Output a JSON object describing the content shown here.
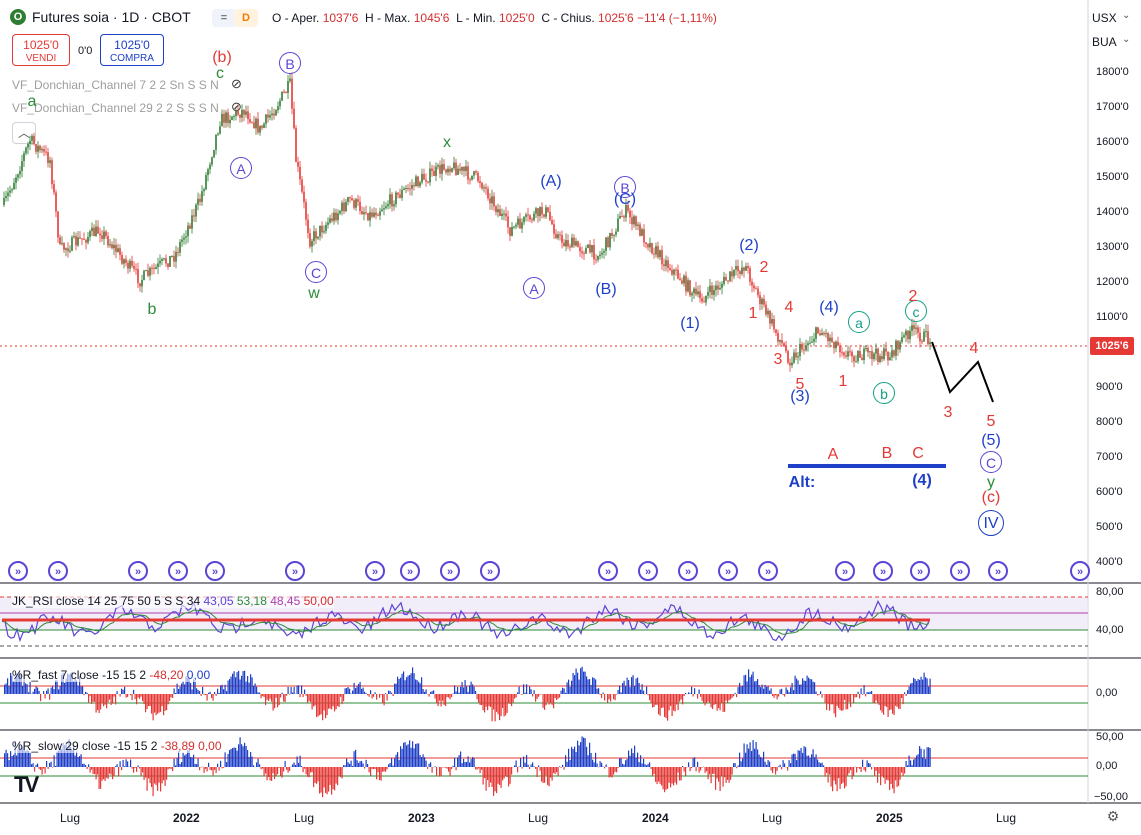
{
  "header": {
    "symbol_icon": "O",
    "title": "Futures soia · 1D · CBOT",
    "pill_1": "=",
    "pill_2": "D",
    "ohlc": {
      "o_label": "O - Aper.",
      "o": "1037'6",
      "h_label": "H - Max.",
      "h": "1045'6",
      "l_label": "L - Min.",
      "l": "1025'0",
      "c_label": "C - Chius.",
      "c": "1025'6",
      "change": "−11'4 (−1,11%)"
    }
  },
  "trade": {
    "sell_price": "1025'0",
    "sell_label": "VENDI",
    "spread": "0'0",
    "buy_price": "1025'0",
    "buy_label": "COMPRA"
  },
  "indicators": {
    "donchian_1": "VF_Donchian_Channel 7 2 2 Sn S S N",
    "donchian_2": "VF_Donchian_Channel 29 2 2 S S S N",
    "collapse_icon": "chevron-up-icon"
  },
  "right_scale": {
    "currency": "USX",
    "unit": "BUA",
    "price_labels": [
      "1800'0",
      "1700'0",
      "1600'0",
      "1500'0",
      "1400'0",
      "1300'0",
      "1200'0",
      "1100'0",
      "1000'0",
      "900'0",
      "800'0",
      "700'0",
      "600'0",
      "500'0",
      "400'0"
    ],
    "last_price": "1025'6"
  },
  "panes": {
    "rsi": {
      "title": "JK_RSI close 14 25 75 50 5 S S 34",
      "v1": "43,05",
      "v2": "53,18",
      "v3": "48,45",
      "v4": "50,00",
      "scale": [
        "80,00",
        "40,00"
      ]
    },
    "wr_fast": {
      "title": "%R_fast 7 close -15 15 2",
      "v1": "-48,20",
      "v2": "0,00",
      "scale": [
        "0,00"
      ]
    },
    "wr_slow": {
      "title": "%R_slow 29 close -15 15 2",
      "v1": "-38,89",
      "v2": "0,00",
      "scale": [
        "50,00",
        "0,00",
        "−50,00"
      ]
    }
  },
  "time_axis": [
    "Lug",
    "2022",
    "Lug",
    "2023",
    "Lug",
    "2024",
    "Lug",
    "2025",
    "Lug"
  ],
  "colors": {
    "up": "#2e7d32",
    "down": "#e53935",
    "wave_blue": "#1e40c8",
    "wave_purple": "#5b45d6",
    "wave_red": "#e53935",
    "wave_green": "#2e8b3a",
    "wave_teal": "#14a085"
  },
  "waves": [
    {
      "t": "a",
      "c": "green"
    },
    {
      "t": "(b)",
      "c": "red"
    },
    {
      "t": "c",
      "c": "green"
    },
    {
      "t": "B",
      "c": "purple",
      "circ": true
    },
    {
      "t": "A",
      "c": "purple",
      "circ": true
    },
    {
      "t": "b",
      "c": "green"
    },
    {
      "t": "C",
      "c": "purple",
      "circ": true
    },
    {
      "t": "w",
      "c": "green"
    },
    {
      "t": "x",
      "c": "green"
    },
    {
      "t": "(A)",
      "c": "blue"
    },
    {
      "t": "A",
      "c": "purple",
      "circ": true
    },
    {
      "t": "B",
      "c": "purple",
      "circ": true
    },
    {
      "t": "(C)",
      "c": "blue"
    },
    {
      "t": "(B)",
      "c": "blue"
    },
    {
      "t": "(1)",
      "c": "blue"
    },
    {
      "t": "(2)",
      "c": "blue"
    },
    {
      "t": "2",
      "c": "red"
    },
    {
      "t": "1",
      "c": "red"
    },
    {
      "t": "4",
      "c": "red"
    },
    {
      "t": "3",
      "c": "red"
    },
    {
      "t": "5",
      "c": "red"
    },
    {
      "t": "(3)",
      "c": "blue"
    },
    {
      "t": "(4)",
      "c": "blue"
    },
    {
      "t": "1",
      "c": "red"
    },
    {
      "t": "a",
      "c": "teal",
      "circ": true
    },
    {
      "t": "b",
      "c": "teal",
      "circ": true
    },
    {
      "t": "c",
      "c": "teal",
      "circ": true
    },
    {
      "t": "2",
      "c": "red"
    },
    {
      "t": "4",
      "c": "red"
    },
    {
      "t": "3",
      "c": "red"
    },
    {
      "t": "5",
      "c": "red"
    },
    {
      "t": "(5)",
      "c": "blue"
    },
    {
      "t": "C",
      "c": "purple",
      "circ": true
    },
    {
      "t": "y",
      "c": "green"
    },
    {
      "t": "(c)",
      "c": "red"
    },
    {
      "t": "IV",
      "c": "blue",
      "circ": true,
      "big": true
    },
    {
      "t": "A",
      "c": "red"
    },
    {
      "t": "B",
      "c": "red"
    },
    {
      "t": "C",
      "c": "red"
    },
    {
      "t": "Alt:",
      "c": "blue"
    },
    {
      "t": "(4)",
      "c": "blue"
    }
  ],
  "event_icon": "arrow-right-circle-icon",
  "settings_icon": "gear-icon",
  "logo": "TV"
}
